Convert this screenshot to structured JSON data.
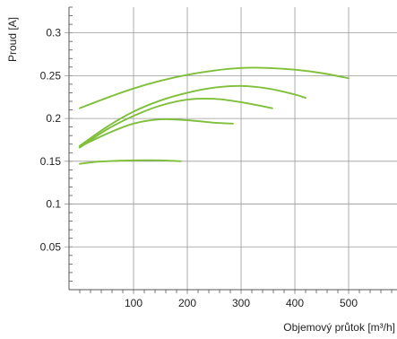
{
  "chart_data": {
    "type": "line",
    "xlabel": "Objemový průtok [m³/h]",
    "ylabel": "Proud [A]",
    "xlim": [
      -20,
      590
    ],
    "ylim": [
      0,
      0.33
    ],
    "x_ticks": [
      100,
      200,
      300,
      400,
      500
    ],
    "x_tick_labels": [
      "100",
      "200",
      "300",
      "400",
      "500"
    ],
    "x_minor_step": 20,
    "y_ticks": [
      0.05,
      0.1,
      0.15,
      0.2,
      0.25,
      0.3
    ],
    "y_tick_labels": [
      "0.05",
      "0.1",
      "0.15",
      "0.2",
      "0.25",
      "0.3"
    ],
    "y_minor_step": 0.01,
    "grid": true,
    "line_color": "#7fbf3a",
    "grid_color": "#9a9a9a",
    "axis_color": "#555555",
    "series": [
      {
        "x": [
          0,
          50,
          100,
          150,
          200,
          250,
          300,
          350,
          400,
          450,
          500
        ],
        "y": [
          0.212,
          0.224,
          0.235,
          0.244,
          0.251,
          0.256,
          0.259,
          0.259,
          0.257,
          0.253,
          0.247
        ]
      },
      {
        "x": [
          0,
          50,
          100,
          150,
          200,
          250,
          300,
          350,
          400,
          420
        ],
        "y": [
          0.168,
          0.19,
          0.208,
          0.221,
          0.23,
          0.236,
          0.238,
          0.235,
          0.228,
          0.224
        ]
      },
      {
        "x": [
          0,
          50,
          100,
          150,
          200,
          250,
          300,
          358
        ],
        "y": [
          0.166,
          0.187,
          0.203,
          0.215,
          0.222,
          0.223,
          0.219,
          0.212
        ]
      },
      {
        "x": [
          0,
          50,
          100,
          150,
          200,
          250,
          285
        ],
        "y": [
          0.167,
          0.182,
          0.194,
          0.199,
          0.198,
          0.195,
          0.194
        ]
      },
      {
        "x": [
          0,
          25,
          50,
          100,
          150,
          188
        ],
        "y": [
          0.147,
          0.149,
          0.15,
          0.151,
          0.151,
          0.15
        ]
      }
    ]
  }
}
